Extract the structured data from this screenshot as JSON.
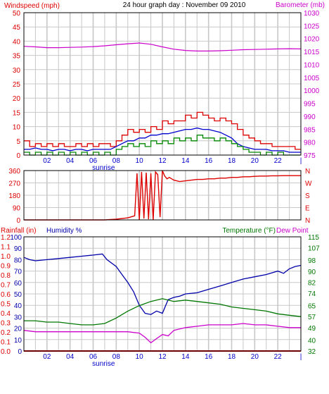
{
  "header": {
    "title": "24 hour graph day : November 09 2010",
    "left_label": "Windspeed (mph)",
    "right_label": "Barometer (mb)"
  },
  "colors": {
    "background": "#ffffff",
    "grid": "#c8c8c8",
    "frame": "#000000",
    "wind": "#dd0000",
    "gust_avg": "#0000cc",
    "wind_avg": "#008800",
    "barometer": "#cc00cc",
    "direction": "#dd0000",
    "rain": "#dd0000",
    "humidity": "#0000aa",
    "temperature": "#007700",
    "dew_point": "#cc00cc"
  },
  "chart_data": [
    {
      "type": "line",
      "panel": "wind",
      "x_ticks": [
        "02",
        "04",
        "06",
        "08",
        "10",
        "12",
        "14",
        "16",
        "18",
        "20",
        "22",
        "|"
      ],
      "sunrise_label": "sunrise",
      "sunrise_hour": 6.9,
      "xlim": [
        0,
        24
      ],
      "ylim": [
        0,
        50
      ],
      "y_ticks": [
        0,
        5,
        10,
        15,
        20,
        25,
        30,
        35,
        40,
        45,
        50
      ],
      "y2lim": [
        975,
        1030
      ],
      "y2_ticks": [
        975,
        980,
        985,
        990,
        995,
        1000,
        1005,
        1010,
        1015,
        1020,
        1025,
        1030
      ],
      "grid": true,
      "series": [
        {
          "key": "gust",
          "axis": "left",
          "step": true,
          "x": [
            0,
            0.5,
            1,
            1.5,
            2,
            2.5,
            3,
            3.5,
            4,
            4.5,
            5,
            5.5,
            6,
            6.5,
            7,
            7.5,
            8,
            8.5,
            9,
            9.5,
            10,
            10.5,
            11,
            11.5,
            12,
            12.5,
            13,
            13.5,
            14,
            14.5,
            15,
            15.5,
            16,
            16.5,
            17,
            17.5,
            18,
            18.5,
            19,
            19.5,
            20,
            20.5,
            21,
            21.5,
            22,
            22.5,
            23,
            23.5,
            24
          ],
          "values": [
            5,
            3,
            4,
            3,
            4,
            3,
            4,
            3,
            3,
            4,
            3,
            4,
            3,
            4,
            4,
            3,
            5,
            7,
            9,
            8,
            9,
            8,
            10,
            9,
            12,
            11,
            12,
            12,
            14,
            13,
            15,
            14,
            13,
            12,
            13,
            12,
            11,
            9,
            7,
            6,
            5,
            4,
            4,
            3,
            3,
            3,
            3,
            2,
            2
          ]
        },
        {
          "key": "gust_avg",
          "axis": "left",
          "x": [
            0,
            0.5,
            1,
            1.5,
            2,
            2.5,
            3,
            3.5,
            4,
            4.5,
            5,
            5.5,
            6,
            6.5,
            7,
            7.5,
            8,
            8.5,
            9,
            9.5,
            10,
            10.5,
            11,
            11.5,
            12,
            12.5,
            13,
            13.5,
            14,
            14.5,
            15,
            15.5,
            16,
            16.5,
            17,
            17.5,
            18,
            18.5,
            19,
            19.5,
            20,
            20.5,
            21,
            21.5,
            22,
            22.5,
            23,
            23.5,
            24
          ],
          "values": [
            2,
            2,
            2.5,
            2,
            2,
            1.5,
            2,
            2,
            1.5,
            2,
            2,
            1.5,
            2,
            2,
            2,
            2,
            3,
            4,
            5,
            5,
            6,
            6,
            7,
            7,
            7.5,
            7.5,
            8,
            8.5,
            9,
            9,
            9.5,
            9,
            9,
            8.5,
            8,
            7,
            6,
            4,
            3,
            2.5,
            2,
            2,
            2,
            1.5,
            1.5,
            1.5,
            1,
            1,
            1
          ]
        },
        {
          "key": "wind_avg",
          "axis": "left",
          "step": true,
          "x": [
            0,
            0.5,
            1,
            1.5,
            2,
            2.5,
            3,
            3.5,
            4,
            4.5,
            5,
            5.5,
            6,
            6.5,
            7,
            7.5,
            8,
            8.5,
            9,
            9.5,
            10,
            10.5,
            11,
            11.5,
            12,
            12.5,
            13,
            13.5,
            14,
            14.5,
            15,
            15.5,
            16,
            16.5,
            17,
            17.5,
            18,
            18.5,
            19,
            19.5,
            20,
            20.5,
            21,
            21.5,
            22,
            22.5,
            23,
            23.5,
            24
          ],
          "values": [
            1,
            0,
            1,
            0,
            1,
            0,
            1,
            0,
            1,
            0,
            1,
            0,
            1,
            0,
            1,
            0,
            2,
            3,
            4,
            3,
            4,
            3,
            5,
            4,
            5,
            4,
            6,
            5,
            6,
            5,
            7,
            6,
            6,
            5,
            6,
            5,
            4,
            3,
            2,
            1,
            1,
            0,
            1,
            0,
            1,
            0,
            0,
            0,
            0
          ]
        },
        {
          "key": "barometer",
          "axis": "right",
          "x": [
            0,
            1,
            2,
            3,
            4,
            5,
            6,
            7,
            8,
            9,
            10,
            11,
            12,
            13,
            14,
            15,
            16,
            17,
            18,
            19,
            20,
            21,
            22,
            23,
            24
          ],
          "values": [
            1017,
            1016.8,
            1016.5,
            1016.5,
            1016.6,
            1016.7,
            1016.9,
            1017.2,
            1017.6,
            1018,
            1018.3,
            1017.8,
            1016.8,
            1015.9,
            1015.4,
            1015.2,
            1015.2,
            1015.3,
            1015.5,
            1015.7,
            1015.8,
            1015.9,
            1016.0,
            1016.1,
            1016.0
          ]
        }
      ]
    },
    {
      "type": "scatter",
      "panel": "wind_direction",
      "xlim": [
        0,
        24
      ],
      "ylim": [
        0,
        360
      ],
      "y_ticks": [
        0,
        90,
        180,
        270,
        360
      ],
      "y_tick_labels": [
        "0",
        "90",
        "180",
        "270",
        "360"
      ],
      "compass_labels": [
        "N",
        "W",
        "S",
        "E",
        "N"
      ],
      "series": [
        {
          "key": "direction",
          "x": [
            0,
            6,
            7,
            8,
            9,
            9.6,
            9.8,
            10,
            10.2,
            10.4,
            10.6,
            10.8,
            11,
            11.2,
            11.4,
            11.6,
            11.8,
            12,
            12.2,
            12.4,
            12.6,
            12.8,
            13,
            13.5,
            14,
            14.5,
            15,
            15.5,
            16,
            16.5,
            17,
            17.5,
            18,
            18.5,
            19,
            19.5,
            20,
            20.5,
            21,
            21.5,
            22,
            22.5,
            23,
            23.5,
            24
          ],
          "values": [
            0,
            0,
            0,
            5,
            15,
            30,
            340,
            0,
            350,
            10,
            345,
            5,
            340,
            0,
            350,
            330,
            20,
            360,
            320,
            300,
            310,
            300,
            290,
            280,
            285,
            290,
            295,
            295,
            300,
            300,
            305,
            305,
            310,
            310,
            315,
            315,
            318,
            320,
            320,
            322,
            322,
            323,
            323,
            323,
            323
          ]
        }
      ]
    },
    {
      "type": "line",
      "panel": "rain_humidity_temperature",
      "left_label_rain": "Rainfall (in)",
      "left_label_humidity": "Humidity %",
      "right_label_temp": "Temperature (°F)",
      "right_label_dew": "Dew Point",
      "xlim": [
        0,
        24
      ],
      "rain_ticks": [
        "0.0",
        "0.1",
        "0.2",
        "0.3",
        "0.4",
        "0.5",
        "0.6",
        "0.7",
        "0.8",
        "0.9",
        "1.0",
        "1.1",
        "1.2"
      ],
      "rain_tick_values": [
        0,
        0.1,
        0.2,
        0.3,
        0.4,
        0.5,
        0.6,
        0.7,
        0.8,
        0.9,
        1.0,
        1.1,
        1.2
      ],
      "humidity_ticks": [
        0,
        10,
        20,
        30,
        40,
        50,
        60,
        70,
        80,
        90,
        100
      ],
      "humidity_ylim": [
        0,
        100
      ],
      "temp_ticks": [
        32,
        40,
        49,
        57,
        65,
        74,
        82,
        90,
        98,
        107,
        115
      ],
      "temp_ylim": [
        32,
        115
      ],
      "grid": true,
      "series": [
        {
          "key": "rain",
          "axis": "rain",
          "x": [
            0,
            24
          ],
          "values": [
            0.0,
            0.0
          ]
        },
        {
          "key": "humidity",
          "axis": "humidity",
          "x": [
            0,
            0.5,
            1,
            2,
            3,
            4,
            5,
            6,
            6.8,
            7.2,
            8,
            8.5,
            9,
            9.5,
            10,
            10.5,
            11,
            11.5,
            12,
            12.5,
            13,
            13.5,
            14,
            15,
            16,
            17,
            18,
            19,
            20,
            21,
            22,
            22.5,
            23,
            23.5,
            24
          ],
          "values": [
            82,
            80,
            79,
            80,
            81,
            82,
            83,
            84,
            85,
            80,
            74,
            67,
            60,
            52,
            40,
            33,
            32,
            35,
            33,
            45,
            47,
            48,
            50,
            51,
            54,
            57,
            60,
            63,
            65,
            67,
            70,
            68,
            72,
            74,
            75
          ]
        },
        {
          "key": "temperature",
          "axis": "temp",
          "x": [
            0,
            1,
            2,
            3,
            4,
            5,
            6,
            7,
            8,
            9,
            10,
            11,
            12,
            13,
            14,
            15,
            16,
            17,
            18,
            19,
            20,
            21,
            22,
            23,
            24
          ],
          "values": [
            54,
            54,
            53,
            53,
            52,
            51,
            51,
            52,
            56,
            61,
            65,
            68,
            70,
            68,
            69,
            68,
            67,
            66,
            64,
            63,
            62,
            61,
            59,
            58,
            57
          ]
        },
        {
          "key": "dew_point",
          "axis": "temp",
          "x": [
            0,
            1,
            2,
            3,
            4,
            5,
            6,
            7,
            8,
            9,
            10,
            10.5,
            11,
            11.5,
            12,
            12.5,
            13,
            14,
            15,
            16,
            17,
            18,
            19,
            20,
            21,
            22,
            23,
            24
          ],
          "values": [
            47,
            46,
            46,
            46,
            46,
            46,
            46,
            46,
            46,
            46,
            45,
            42,
            38,
            41,
            44,
            43,
            47,
            49,
            50,
            51,
            51,
            51,
            52,
            51,
            51,
            50,
            49,
            49
          ]
        }
      ]
    }
  ]
}
